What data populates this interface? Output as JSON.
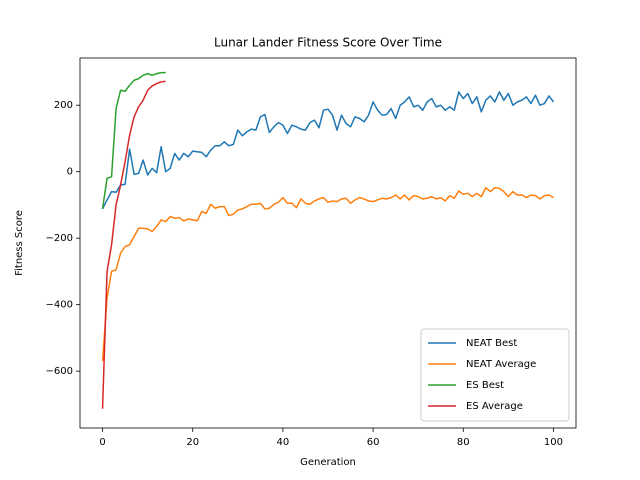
{
  "chart_data": {
    "type": "line",
    "title": "Lunar Lander Fitness Score Over Time",
    "x_label": "Generation",
    "y_label": "Fitness Score",
    "xlim": [
      -5,
      105
    ],
    "ylim": [
      -771,
      342
    ],
    "xticks": [
      0,
      20,
      40,
      60,
      80,
      100
    ],
    "yticks": [
      {
        "value": -600,
        "label": "−600"
      },
      {
        "value": -400,
        "label": "−400"
      },
      {
        "value": -200,
        "label": "−200"
      },
      0,
      200
    ],
    "grid": false,
    "legend": "lower right",
    "series": [
      {
        "name": "NEAT Best",
        "color": "#1f77b4",
        "x": [
          0,
          1,
          2,
          3,
          4,
          5,
          6,
          7,
          8,
          9,
          10,
          11,
          12,
          13,
          14,
          15,
          16,
          17,
          18,
          19,
          20,
          21,
          22,
          23,
          24,
          25,
          26,
          27,
          28,
          29,
          30,
          31,
          32,
          33,
          34,
          35,
          36,
          37,
          38,
          39,
          40,
          41,
          42,
          43,
          44,
          45,
          46,
          47,
          48,
          49,
          50,
          51,
          52,
          53,
          54,
          55,
          56,
          57,
          58,
          59,
          60,
          61,
          62,
          63,
          64,
          65,
          66,
          67,
          68,
          69,
          70,
          71,
          72,
          73,
          74,
          75,
          76,
          77,
          78,
          79,
          80,
          81,
          82,
          83,
          84,
          85,
          86,
          87,
          88,
          89,
          90,
          91,
          92,
          93,
          94,
          95,
          96,
          97,
          98,
          99,
          100
        ],
        "values": [
          -112,
          -85,
          -60,
          -62,
          -40,
          -38,
          68,
          -8,
          -5,
          35,
          -10,
          10,
          -3,
          75,
          0,
          10,
          55,
          35,
          55,
          45,
          62,
          60,
          58,
          45,
          65,
          78,
          78,
          90,
          78,
          82,
          125,
          108,
          120,
          128,
          125,
          165,
          172,
          118,
          135,
          148,
          140,
          115,
          140,
          135,
          128,
          125,
          148,
          155,
          132,
          185,
          188,
          170,
          125,
          170,
          145,
          135,
          165,
          160,
          150,
          170,
          210,
          185,
          170,
          172,
          190,
          160,
          200,
          210,
          225,
          195,
          200,
          185,
          210,
          220,
          195,
          200,
          185,
          195,
          185,
          240,
          220,
          235,
          205,
          225,
          180,
          215,
          228,
          210,
          240,
          215,
          235,
          200,
          210,
          215,
          225,
          205,
          230,
          200,
          205,
          228,
          210
        ]
      },
      {
        "name": "NEAT Average",
        "color": "#ff7f0e",
        "x": [
          0,
          1,
          2,
          3,
          4,
          5,
          6,
          7,
          8,
          9,
          10,
          11,
          12,
          13,
          14,
          15,
          16,
          17,
          18,
          19,
          20,
          21,
          22,
          23,
          24,
          25,
          26,
          27,
          28,
          29,
          30,
          31,
          32,
          33,
          34,
          35,
          36,
          37,
          38,
          39,
          40,
          41,
          42,
          43,
          44,
          45,
          46,
          47,
          48,
          49,
          50,
          51,
          52,
          53,
          54,
          55,
          56,
          57,
          58,
          59,
          60,
          61,
          62,
          63,
          64,
          65,
          66,
          67,
          68,
          69,
          70,
          71,
          72,
          73,
          74,
          75,
          76,
          77,
          78,
          79,
          80,
          81,
          82,
          83,
          84,
          85,
          86,
          87,
          88,
          89,
          90,
          91,
          92,
          93,
          94,
          95,
          96,
          97,
          98,
          99,
          100
        ],
        "values": [
          -570,
          -380,
          -300,
          -295,
          -245,
          -225,
          -220,
          -195,
          -170,
          -170,
          -172,
          -180,
          -165,
          -145,
          -150,
          -135,
          -140,
          -138,
          -148,
          -142,
          -145,
          -148,
          -120,
          -125,
          -98,
          -110,
          -105,
          -105,
          -132,
          -128,
          -115,
          -112,
          -105,
          -98,
          -98,
          -95,
          -112,
          -110,
          -98,
          -92,
          -78,
          -95,
          -95,
          -108,
          -82,
          -95,
          -98,
          -88,
          -82,
          -78,
          -92,
          -88,
          -90,
          -82,
          -80,
          -95,
          -85,
          -78,
          -82,
          -88,
          -90,
          -85,
          -80,
          -82,
          -78,
          -70,
          -82,
          -70,
          -85,
          -72,
          -75,
          -82,
          -80,
          -75,
          -82,
          -78,
          -88,
          -72,
          -80,
          -58,
          -68,
          -65,
          -75,
          -65,
          -75,
          -48,
          -60,
          -48,
          -50,
          -60,
          -75,
          -60,
          -70,
          -70,
          -78,
          -70,
          -72,
          -82,
          -72,
          -70,
          -78
        ]
      },
      {
        "name": "ES Best",
        "color": "#2ca02c",
        "x": [
          0,
          1,
          2,
          3,
          4,
          5,
          6,
          7,
          8,
          9,
          10,
          11,
          12,
          13,
          14
        ],
        "values": [
          -112,
          -20,
          -15,
          190,
          245,
          242,
          260,
          275,
          280,
          290,
          295,
          290,
          295,
          298,
          298
        ]
      },
      {
        "name": "ES Average",
        "color": "#d62728",
        "x": [
          0,
          1,
          2,
          3,
          4,
          5,
          6,
          7,
          8,
          9,
          10,
          11,
          12,
          13,
          14
        ],
        "values": [
          -713,
          -300,
          -220,
          -100,
          -40,
          30,
          110,
          165,
          195,
          215,
          245,
          258,
          265,
          270,
          272
        ]
      }
    ]
  }
}
